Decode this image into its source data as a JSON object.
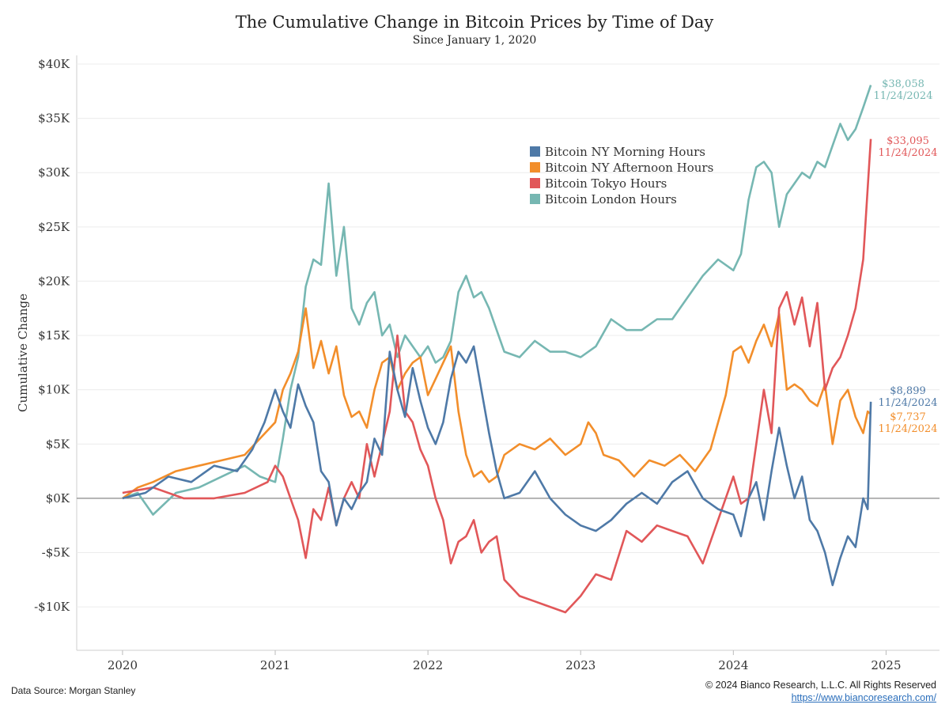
{
  "header": {
    "title": "The Cumulative Change in Bitcoin Prices by Time of Day",
    "subtitle": "Since January 1, 2020"
  },
  "footer": {
    "source": "Data Source: Morgan Stanley",
    "copyright": "© 2024 Bianco Research, L.L.C. All Rights Reserved",
    "url": "https://www.biancoresearch.com/"
  },
  "chart_data": {
    "type": "line",
    "ylabel": "Cumulative Change",
    "xlabel": "",
    "ylim": [
      -14000,
      40800
    ],
    "yticks": [
      -10000,
      -5000,
      0,
      5000,
      10000,
      15000,
      20000,
      25000,
      30000,
      35000,
      40000
    ],
    "ytick_labels": [
      "-$10K",
      "-$5K",
      "$0K",
      "$5K",
      "$10K",
      "$15K",
      "$20K",
      "$25K",
      "$30K",
      "$35K",
      "$40K"
    ],
    "xlim": [
      2019.7,
      2025.35
    ],
    "xticks": [
      2020,
      2021,
      2022,
      2023,
      2024,
      2025
    ],
    "xtick_labels": [
      "2020",
      "2021",
      "2022",
      "2023",
      "2024",
      "2025"
    ],
    "grid": true,
    "legend_position": "upper-center-right",
    "series": [
      {
        "name": "Bitcoin NY Morning Hours",
        "color": "#4e79a7",
        "end_label": "$8,899",
        "end_date": "11/24/2024",
        "x": [
          2020.0,
          2020.15,
          2020.3,
          2020.45,
          2020.6,
          2020.75,
          2020.85,
          2020.93,
          2021.0,
          2021.05,
          2021.1,
          2021.15,
          2021.2,
          2021.25,
          2021.3,
          2021.35,
          2021.4,
          2021.45,
          2021.5,
          2021.55,
          2021.6,
          2021.65,
          2021.7,
          2021.75,
          2021.8,
          2021.85,
          2021.9,
          2021.95,
          2022.0,
          2022.05,
          2022.1,
          2022.15,
          2022.2,
          2022.25,
          2022.3,
          2022.35,
          2022.4,
          2022.45,
          2022.5,
          2022.6,
          2022.7,
          2022.8,
          2022.9,
          2023.0,
          2023.1,
          2023.2,
          2023.3,
          2023.4,
          2023.5,
          2023.6,
          2023.7,
          2023.8,
          2023.9,
          2024.0,
          2024.05,
          2024.1,
          2024.15,
          2024.2,
          2024.25,
          2024.3,
          2024.35,
          2024.4,
          2024.45,
          2024.5,
          2024.55,
          2024.6,
          2024.65,
          2024.7,
          2024.75,
          2024.8,
          2024.85,
          2024.88,
          2024.9
        ],
        "values": [
          0,
          500,
          2000,
          1500,
          3000,
          2500,
          4500,
          7000,
          10000,
          8000,
          6500,
          10500,
          8500,
          7000,
          2500,
          1500,
          -2500,
          0,
          -1000,
          500,
          1500,
          5500,
          4000,
          13500,
          10000,
          7500,
          12000,
          9000,
          6500,
          5000,
          7000,
          11000,
          13500,
          12500,
          14000,
          10000,
          6000,
          2500,
          0,
          500,
          2500,
          0,
          -1500,
          -2500,
          -3000,
          -2000,
          -500,
          500,
          -500,
          1500,
          2500,
          0,
          -1000,
          -1500,
          -3500,
          0,
          1500,
          -2000,
          2500,
          6500,
          3000,
          0,
          2000,
          -2000,
          -3000,
          -5000,
          -8000,
          -5500,
          -3500,
          -4500,
          0,
          -1000,
          8899
        ]
      },
      {
        "name": "Bitcoin NY Afternoon Hours",
        "color": "#f28e2b",
        "end_label": "$7,737",
        "end_date": "11/24/2024",
        "x": [
          2020.0,
          2020.1,
          2020.2,
          2020.35,
          2020.5,
          2020.65,
          2020.8,
          2020.9,
          2021.0,
          2021.05,
          2021.1,
          2021.15,
          2021.2,
          2021.25,
          2021.3,
          2021.35,
          2021.4,
          2021.45,
          2021.5,
          2021.55,
          2021.6,
          2021.65,
          2021.7,
          2021.75,
          2021.8,
          2021.85,
          2021.9,
          2021.95,
          2022.0,
          2022.05,
          2022.1,
          2022.15,
          2022.2,
          2022.25,
          2022.3,
          2022.35,
          2022.4,
          2022.45,
          2022.5,
          2022.6,
          2022.7,
          2022.8,
          2022.9,
          2023.0,
          2023.05,
          2023.1,
          2023.15,
          2023.25,
          2023.35,
          2023.45,
          2023.55,
          2023.65,
          2023.75,
          2023.85,
          2023.95,
          2024.0,
          2024.05,
          2024.1,
          2024.15,
          2024.2,
          2024.25,
          2024.3,
          2024.35,
          2024.4,
          2024.45,
          2024.5,
          2024.55,
          2024.6,
          2024.65,
          2024.7,
          2024.75,
          2024.8,
          2024.85,
          2024.88,
          2024.9
        ],
        "values": [
          0,
          1000,
          1500,
          2500,
          3000,
          3500,
          4000,
          5500,
          7000,
          10000,
          11500,
          13500,
          17500,
          12000,
          14500,
          11500,
          14000,
          9500,
          7500,
          8000,
          6500,
          10000,
          12500,
          13000,
          10000,
          11500,
          12500,
          13000,
          9500,
          11000,
          12500,
          14000,
          8000,
          4000,
          2000,
          2500,
          1500,
          2000,
          4000,
          5000,
          4500,
          5500,
          4000,
          5000,
          7000,
          6000,
          4000,
          3500,
          2000,
          3500,
          3000,
          4000,
          2500,
          4500,
          9500,
          13500,
          14000,
          12500,
          14500,
          16000,
          14000,
          17000,
          10000,
          10500,
          10000,
          9000,
          8500,
          10500,
          5000,
          9000,
          10000,
          7500,
          6000,
          8000,
          7737
        ]
      },
      {
        "name": "Bitcoin Tokyo Hours",
        "color": "#e15759",
        "end_label": "$33,095",
        "end_date": "11/24/2024",
        "x": [
          2020.0,
          2020.2,
          2020.4,
          2020.6,
          2020.8,
          2020.95,
          2021.0,
          2021.05,
          2021.1,
          2021.15,
          2021.2,
          2021.25,
          2021.3,
          2021.35,
          2021.4,
          2021.45,
          2021.5,
          2021.55,
          2021.6,
          2021.65,
          2021.7,
          2021.75,
          2021.8,
          2021.85,
          2021.9,
          2021.95,
          2022.0,
          2022.05,
          2022.1,
          2022.15,
          2022.2,
          2022.25,
          2022.3,
          2022.35,
          2022.4,
          2022.45,
          2022.5,
          2022.6,
          2022.7,
          2022.8,
          2022.9,
          2023.0,
          2023.1,
          2023.2,
          2023.3,
          2023.4,
          2023.5,
          2023.6,
          2023.7,
          2023.8,
          2023.9,
          2024.0,
          2024.05,
          2024.1,
          2024.15,
          2024.2,
          2024.25,
          2024.3,
          2024.35,
          2024.4,
          2024.45,
          2024.5,
          2024.55,
          2024.6,
          2024.65,
          2024.7,
          2024.75,
          2024.8,
          2024.85,
          2024.9
        ],
        "values": [
          500,
          1000,
          0,
          0,
          500,
          1500,
          3000,
          2000,
          0,
          -2000,
          -5500,
          -1000,
          -2000,
          1000,
          -2500,
          0,
          1500,
          0,
          5000,
          2000,
          5000,
          8000,
          15000,
          8000,
          7000,
          4500,
          3000,
          0,
          -2000,
          -6000,
          -4000,
          -3500,
          -2000,
          -5000,
          -4000,
          -3500,
          -7500,
          -9000,
          -9500,
          -10000,
          -10500,
          -9000,
          -7000,
          -7500,
          -3000,
          -4000,
          -2500,
          -3000,
          -3500,
          -6000,
          -2000,
          2000,
          -500,
          0,
          5000,
          10000,
          6000,
          17500,
          19000,
          16000,
          18500,
          14000,
          18000,
          10000,
          12000,
          13000,
          15000,
          17500,
          22000,
          33095
        ]
      },
      {
        "name": "Bitcoin London Hours",
        "color": "#76b7b2",
        "end_label": "$38,058",
        "end_date": "11/24/2024",
        "x": [
          2020.0,
          2020.1,
          2020.2,
          2020.35,
          2020.5,
          2020.65,
          2020.8,
          2020.9,
          2021.0,
          2021.05,
          2021.1,
          2021.15,
          2021.2,
          2021.25,
          2021.3,
          2021.35,
          2021.4,
          2021.45,
          2021.5,
          2021.55,
          2021.6,
          2021.65,
          2021.7,
          2021.75,
          2021.8,
          2021.85,
          2021.9,
          2021.95,
          2022.0,
          2022.05,
          2022.1,
          2022.15,
          2022.2,
          2022.25,
          2022.3,
          2022.35,
          2022.4,
          2022.45,
          2022.5,
          2022.6,
          2022.7,
          2022.8,
          2022.9,
          2023.0,
          2023.1,
          2023.2,
          2023.3,
          2023.4,
          2023.5,
          2023.6,
          2023.7,
          2023.8,
          2023.9,
          2024.0,
          2024.05,
          2024.1,
          2024.15,
          2024.2,
          2024.25,
          2024.3,
          2024.35,
          2024.4,
          2024.45,
          2024.5,
          2024.55,
          2024.6,
          2024.65,
          2024.7,
          2024.75,
          2024.8,
          2024.85,
          2024.9
        ],
        "values": [
          0,
          500,
          -1500,
          500,
          1000,
          2000,
          3000,
          2000,
          1500,
          5500,
          10000,
          13000,
          19500,
          22000,
          21500,
          29000,
          20500,
          25000,
          17500,
          16000,
          18000,
          19000,
          15000,
          16000,
          13000,
          15000,
          14000,
          13000,
          14000,
          12500,
          13000,
          14500,
          19000,
          20500,
          18500,
          19000,
          17500,
          15500,
          13500,
          13000,
          14500,
          13500,
          13500,
          13000,
          14000,
          16500,
          15500,
          15500,
          16500,
          16500,
          18500,
          20500,
          22000,
          21000,
          22500,
          27500,
          30500,
          31000,
          30000,
          25000,
          28000,
          29000,
          30000,
          29500,
          31000,
          30500,
          32500,
          34500,
          33000,
          34000,
          36000,
          38058
        ]
      }
    ]
  }
}
